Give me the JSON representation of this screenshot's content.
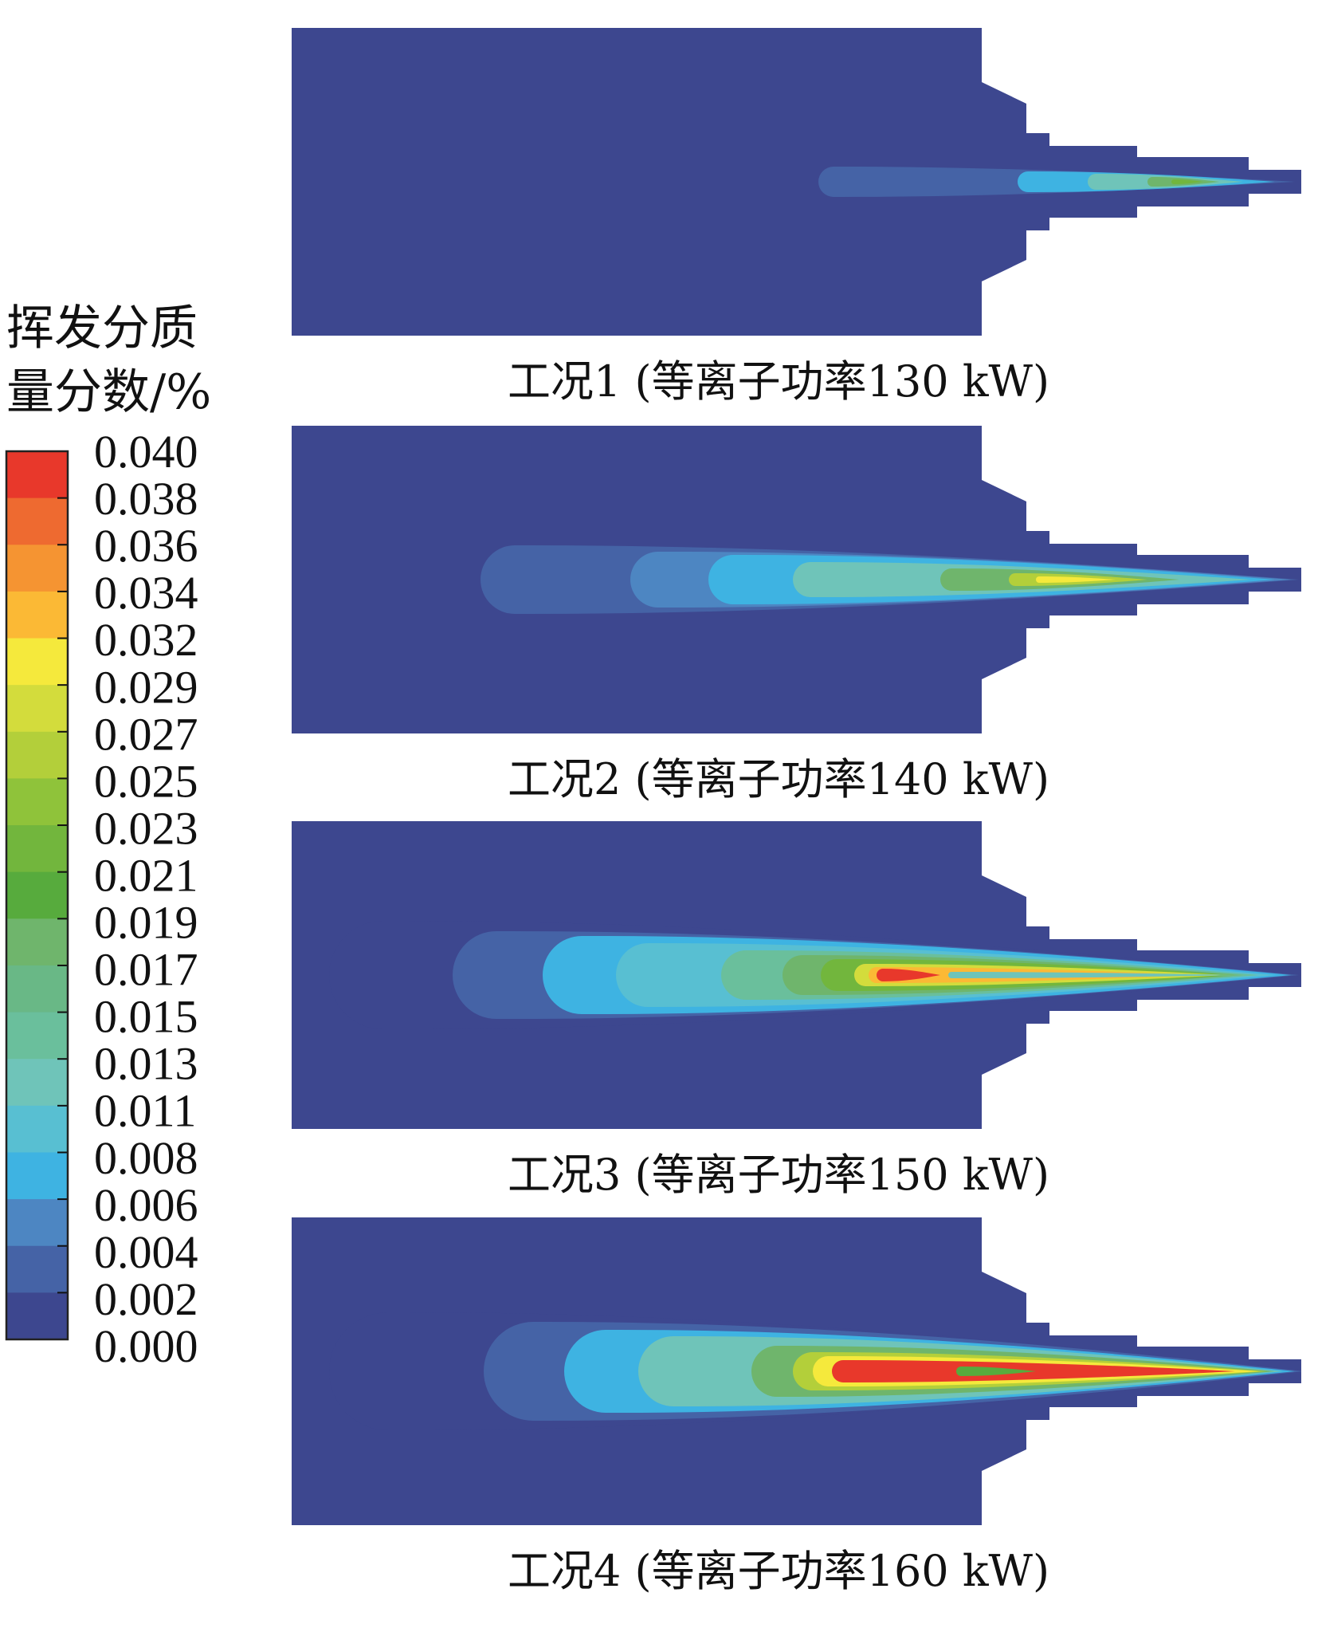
{
  "chart_data": {
    "type": "heatmap",
    "colorbar": {
      "title_line1": "挥发分质",
      "title_line2": "量分数/%",
      "ticks": [
        "0.040",
        "0.038",
        "0.036",
        "0.034",
        "0.032",
        "0.029",
        "0.027",
        "0.025",
        "0.023",
        "0.021",
        "0.019",
        "0.017",
        "0.015",
        "0.013",
        "0.011",
        "0.008",
        "0.006",
        "0.004",
        "0.002",
        "0.000"
      ],
      "range": [
        0,
        0.04
      ],
      "colors": [
        "#e8382b",
        "#ee6a30",
        "#f59432",
        "#fbb935",
        "#f5e93c",
        "#d3dc3c",
        "#b3cf3a",
        "#8fc33a",
        "#72b63d",
        "#57ab3d",
        "#6fb56c",
        "#69b886",
        "#6abf9c",
        "#6fc4b9",
        "#58bfd2",
        "#3eb3e2",
        "#4d86c2",
        "#4563a6",
        "#3d478f"
      ]
    },
    "panels": [
      {
        "caption": "工况1 (等离子功率130 kW)",
        "plasma_power_kW": 130
      },
      {
        "caption": "工况2 (等离子功率140 kW)",
        "plasma_power_kW": 140
      },
      {
        "caption": "工况3 (等离子功率150 kW)",
        "plasma_power_kW": 150
      },
      {
        "caption": "工况4 (等离子功率160 kW)",
        "plasma_power_kW": 160
      }
    ]
  }
}
